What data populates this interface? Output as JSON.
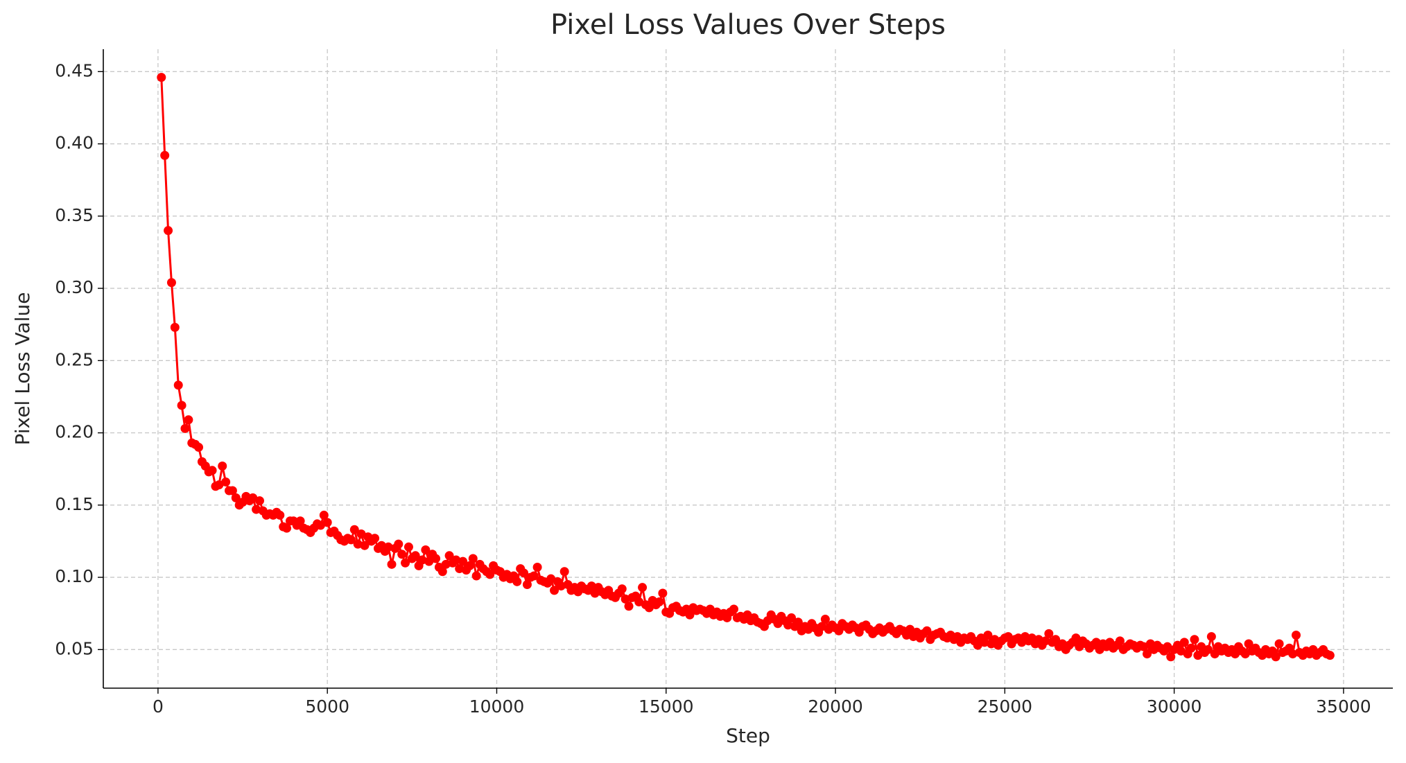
{
  "chart_data": {
    "type": "line",
    "title": "Pixel Loss Values Over Steps",
    "x_label": "Step",
    "y_label": "Pixel Loss Value",
    "color": "#ff0000",
    "grid": true,
    "xlim": [
      -1615,
      36455
    ],
    "ylim": [
      0.0233,
      0.4655
    ],
    "xticks": [
      0,
      5000,
      10000,
      15000,
      20000,
      25000,
      30000,
      35000
    ],
    "yticks": [
      0.05,
      {
        "value": 0.1,
        "label": "0.10"
      },
      0.15,
      {
        "value": 0.2,
        "label": "0.20"
      },
      0.25,
      {
        "value": 0.3,
        "label": "0.30"
      },
      0.35,
      {
        "value": 0.4,
        "label": "0.40"
      },
      0.45
    ],
    "x": [
      100,
      200,
      300,
      400,
      500,
      600,
      700,
      800,
      900,
      1000,
      1100,
      1200,
      1300,
      1400,
      1500,
      1600,
      1700,
      1800,
      1900,
      2000,
      2100,
      2200,
      2300,
      2400,
      2500,
      2600,
      2700,
      2800,
      2900,
      3000,
      3100,
      3200,
      3300,
      3400,
      3500,
      3600,
      3700,
      3800,
      3900,
      4000,
      4100,
      4200,
      4300,
      4400,
      4500,
      4600,
      4700,
      4800,
      4900,
      5000,
      5100,
      5200,
      5300,
      5400,
      5500,
      5600,
      5700,
      5800,
      5900,
      6000,
      6100,
      6200,
      6300,
      6400,
      6500,
      6600,
      6700,
      6800,
      6900,
      7000,
      7100,
      7200,
      7300,
      7400,
      7500,
      7600,
      7700,
      7800,
      7900,
      8000,
      8100,
      8200,
      8300,
      8400,
      8500,
      8600,
      8700,
      8800,
      8900,
      9000,
      9100,
      9200,
      9300,
      9400,
      9500,
      9600,
      9700,
      9800,
      9900,
      10000,
      10100,
      10200,
      10300,
      10400,
      10500,
      10600,
      10700,
      10800,
      10900,
      11000,
      11100,
      11200,
      11300,
      11400,
      11500,
      11600,
      11700,
      11800,
      11900,
      12000,
      12100,
      12200,
      12300,
      12400,
      12500,
      12600,
      12700,
      12800,
      12900,
      13000,
      13100,
      13200,
      13300,
      13400,
      13500,
      13600,
      13700,
      13800,
      13900,
      14000,
      14100,
      14200,
      14300,
      14400,
      14500,
      14600,
      14700,
      14800,
      14900,
      15000,
      15100,
      15200,
      15300,
      15400,
      15500,
      15600,
      15700,
      15800,
      15900,
      16000,
      16100,
      16200,
      16300,
      16400,
      16500,
      16600,
      16700,
      16800,
      16900,
      17000,
      17100,
      17200,
      17300,
      17400,
      17500,
      17600,
      17700,
      17800,
      17900,
      18000,
      18100,
      18200,
      18300,
      18400,
      18500,
      18600,
      18700,
      18800,
      18900,
      19000,
      19100,
      19200,
      19300,
      19400,
      19500,
      19600,
      19700,
      19800,
      19900,
      20000,
      20100,
      20200,
      20300,
      20400,
      20500,
      20600,
      20700,
      20800,
      20900,
      21000,
      21100,
      21200,
      21300,
      21400,
      21500,
      21600,
      21700,
      21800,
      21900,
      22000,
      22100,
      22200,
      22300,
      22400,
      22500,
      22600,
      22700,
      22800,
      22900,
      23000,
      23100,
      23200,
      23300,
      23400,
      23500,
      23600,
      23700,
      23800,
      23900,
      24000,
      24100,
      24200,
      24300,
      24400,
      24500,
      24600,
      24700,
      24800,
      24900,
      25000,
      25100,
      25200,
      25300,
      25400,
      25500,
      25600,
      25700,
      25800,
      25900,
      26000,
      26100,
      26200,
      26300,
      26400,
      26500,
      26600,
      26700,
      26800,
      26900,
      27000,
      27100,
      27200,
      27300,
      27400,
      27500,
      27600,
      27700,
      27800,
      27900,
      28000,
      28100,
      28200,
      28300,
      28400,
      28500,
      28600,
      28700,
      28800,
      28900,
      29000,
      29100,
      29200,
      29300,
      29400,
      29500,
      29600,
      29700,
      29800,
      29900,
      30000,
      30100,
      30200,
      30300,
      30400,
      30500,
      30600,
      30700,
      30800,
      30900,
      31000,
      31100,
      31200,
      31300,
      31400,
      31500,
      31600,
      31700,
      31800,
      31900,
      32000,
      32100,
      32200,
      32300,
      32400,
      32500,
      32600,
      32700,
      32800,
      32900,
      33000,
      33100,
      33200,
      33300,
      33400,
      33500,
      33600,
      33700,
      33800,
      33900,
      34000,
      34100,
      34200,
      34300,
      34400,
      34500,
      34600
    ],
    "values": [
      0.446,
      0.392,
      0.34,
      0.304,
      0.273,
      0.233,
      0.219,
      0.203,
      0.209,
      0.193,
      0.192,
      0.19,
      0.18,
      0.177,
      0.173,
      0.174,
      0.163,
      0.164,
      0.177,
      0.166,
      0.16,
      0.16,
      0.155,
      0.15,
      0.152,
      0.156,
      0.153,
      0.155,
      0.147,
      0.153,
      0.146,
      0.143,
      0.144,
      0.143,
      0.145,
      0.143,
      0.135,
      0.134,
      0.139,
      0.139,
      0.136,
      0.139,
      0.134,
      0.133,
      0.131,
      0.134,
      0.137,
      0.136,
      0.143,
      0.138,
      0.131,
      0.132,
      0.129,
      0.126,
      0.125,
      0.127,
      0.126,
      0.133,
      0.123,
      0.13,
      0.122,
      0.128,
      0.125,
      0.127,
      0.12,
      0.122,
      0.118,
      0.121,
      0.109,
      0.12,
      0.123,
      0.116,
      0.11,
      0.121,
      0.113,
      0.115,
      0.108,
      0.112,
      0.119,
      0.111,
      0.116,
      0.113,
      0.107,
      0.104,
      0.109,
      0.115,
      0.11,
      0.112,
      0.106,
      0.111,
      0.105,
      0.108,
      0.113,
      0.101,
      0.109,
      0.106,
      0.104,
      0.102,
      0.108,
      0.105,
      0.104,
      0.1,
      0.102,
      0.099,
      0.101,
      0.097,
      0.106,
      0.103,
      0.095,
      0.1,
      0.101,
      0.107,
      0.098,
      0.097,
      0.096,
      0.099,
      0.091,
      0.097,
      0.094,
      0.104,
      0.095,
      0.091,
      0.093,
      0.09,
      0.094,
      0.092,
      0.091,
      0.094,
      0.089,
      0.093,
      0.09,
      0.088,
      0.091,
      0.087,
      0.086,
      0.089,
      0.092,
      0.085,
      0.08,
      0.086,
      0.087,
      0.083,
      0.093,
      0.081,
      0.079,
      0.084,
      0.081,
      0.083,
      0.089,
      0.076,
      0.075,
      0.079,
      0.08,
      0.077,
      0.076,
      0.078,
      0.074,
      0.079,
      0.077,
      0.078,
      0.077,
      0.075,
      0.078,
      0.074,
      0.076,
      0.073,
      0.075,
      0.072,
      0.076,
      0.078,
      0.072,
      0.073,
      0.071,
      0.074,
      0.07,
      0.072,
      0.069,
      0.068,
      0.066,
      0.07,
      0.074,
      0.071,
      0.068,
      0.073,
      0.07,
      0.067,
      0.072,
      0.066,
      0.069,
      0.063,
      0.066,
      0.064,
      0.068,
      0.065,
      0.062,
      0.066,
      0.071,
      0.064,
      0.067,
      0.065,
      0.063,
      0.068,
      0.066,
      0.064,
      0.067,
      0.065,
      0.062,
      0.066,
      0.067,
      0.064,
      0.061,
      0.063,
      0.065,
      0.062,
      0.064,
      0.066,
      0.063,
      0.061,
      0.064,
      0.063,
      0.06,
      0.064,
      0.059,
      0.062,
      0.058,
      0.061,
      0.063,
      0.057,
      0.06,
      0.061,
      0.062,
      0.059,
      0.058,
      0.06,
      0.057,
      0.059,
      0.055,
      0.058,
      0.057,
      0.059,
      0.056,
      0.053,
      0.058,
      0.055,
      0.06,
      0.054,
      0.057,
      0.053,
      0.056,
      0.058,
      0.059,
      0.054,
      0.057,
      0.058,
      0.055,
      0.059,
      0.056,
      0.058,
      0.054,
      0.057,
      0.053,
      0.056,
      0.061,
      0.055,
      0.057,
      0.052,
      0.054,
      0.05,
      0.053,
      0.055,
      0.058,
      0.052,
      0.056,
      0.054,
      0.051,
      0.053,
      0.055,
      0.05,
      0.054,
      0.052,
      0.055,
      0.051,
      0.053,
      0.056,
      0.05,
      0.052,
      0.054,
      0.053,
      0.051,
      0.053,
      0.052,
      0.047,
      0.054,
      0.05,
      0.053,
      0.051,
      0.049,
      0.052,
      0.045,
      0.05,
      0.053,
      0.049,
      0.055,
      0.047,
      0.051,
      0.057,
      0.046,
      0.052,
      0.048,
      0.05,
      0.059,
      0.047,
      0.052,
      0.049,
      0.051,
      0.048,
      0.05,
      0.047,
      0.052,
      0.049,
      0.047,
      0.054,
      0.049,
      0.051,
      0.048,
      0.046,
      0.05,
      0.047,
      0.049,
      0.045,
      0.054,
      0.048,
      0.049,
      0.051,
      0.047,
      0.06,
      0.048,
      0.046,
      0.049,
      0.047,
      0.05,
      0.046,
      0.048,
      0.05,
      0.047,
      0.046
    ]
  }
}
